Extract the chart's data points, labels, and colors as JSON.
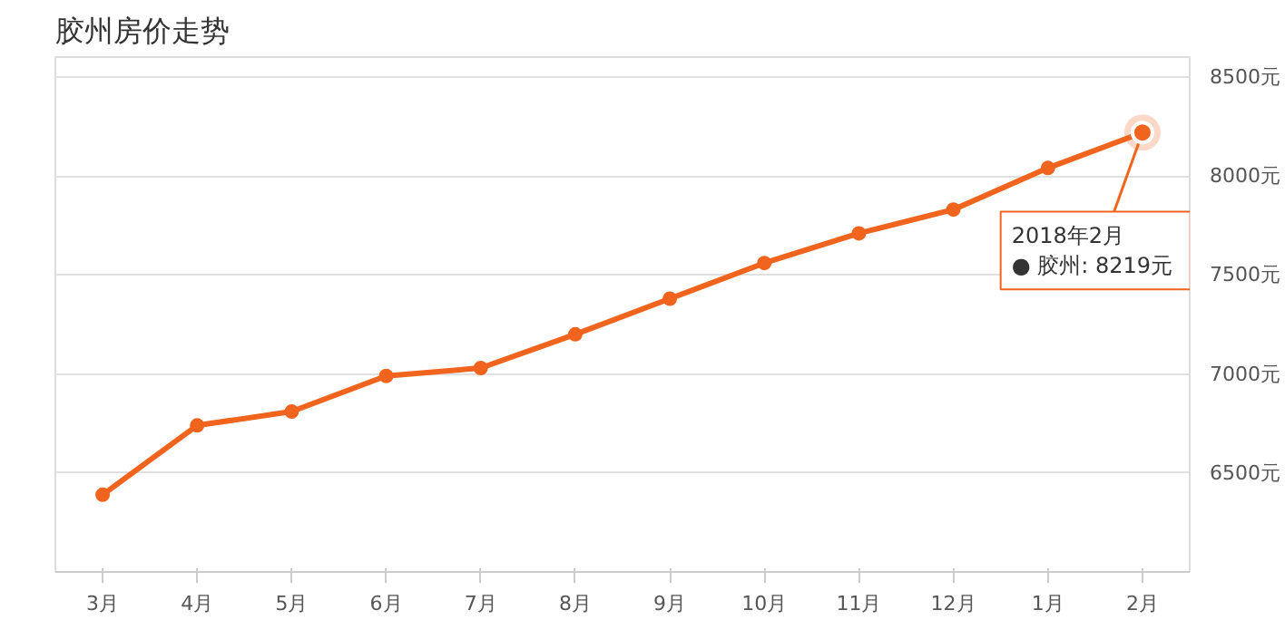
{
  "chart_data": {
    "type": "line",
    "title": "胶州房价走势",
    "categories": [
      "3月",
      "4月",
      "5月",
      "6月",
      "7月",
      "8月",
      "9月",
      "10月",
      "11月",
      "12月",
      "1月",
      "2月"
    ],
    "series": [
      {
        "color": "#f0641e",
        "values": [
          6390,
          6740,
          6810,
          6990,
          7030,
          7200,
          7380,
          7560,
          7710,
          7830,
          8040,
          8219
        ]
      }
    ],
    "ylim": [
      6000,
      8600
    ],
    "yticks": [
      {
        "value": 6500,
        "label": "6500元"
      },
      {
        "value": 7000,
        "label": "7000元"
      },
      {
        "value": 7500,
        "label": "7500元"
      },
      {
        "value": 8000,
        "label": "8000元"
      },
      {
        "value": 8500,
        "label": "8500元"
      }
    ],
    "grid": "y",
    "marker": "circle",
    "line_style": "solid",
    "annotations": [
      {
        "text": "2018年2月\n● 胶州:  8219元",
        "x": "2月",
        "y": 8219
      }
    ]
  }
}
